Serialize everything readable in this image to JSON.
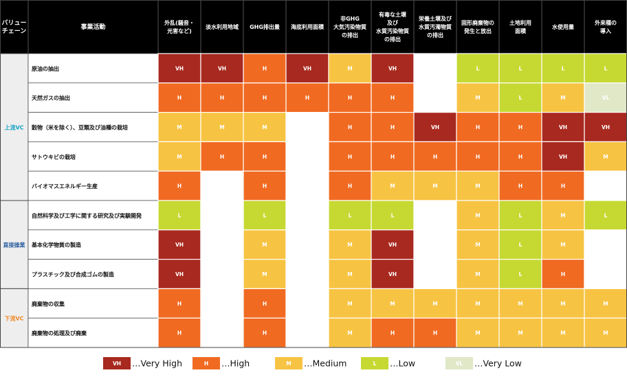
{
  "chart_data": {
    "type": "heatmap",
    "header": {
      "stage": "バリュー\nチェーン",
      "activity": "事業活動",
      "columns": [
        "外乱(騒音・\n光害など)",
        "淡水利用地域",
        "GHG排出量",
        "海底利用面積",
        "非GHG\n大気汚染物質\nの排出",
        "有毒な土壌\n及び\n水質汚染物質\nの排出",
        "栄養土壌及び\n水質汚濁物質\nの排出",
        "固形廃棄物の\n発生と放出",
        "土地利用\n面積",
        "水使用量",
        "外来種の\n導入"
      ]
    },
    "groups": [
      {
        "label": "上流VC",
        "color": "#14a4c4",
        "rows": 5
      },
      {
        "label": "直接操業",
        "color": "#2a5fa0",
        "rows": 3
      },
      {
        "label": "下流VC",
        "color": "#f08a24",
        "rows": 2
      }
    ],
    "rows": [
      {
        "label": "原油の抽出",
        "values": [
          "VH",
          "VH",
          "H",
          "VH",
          "M",
          "VH",
          "",
          "L",
          "L",
          "L",
          "L"
        ]
      },
      {
        "label": "天然ガスの抽出",
        "values": [
          "H",
          "H",
          "H",
          "H",
          "H",
          "H",
          "",
          "M",
          "L",
          "M",
          "VL"
        ]
      },
      {
        "label": "穀物（米を除く）、豆類及び油種の栽培",
        "values": [
          "M",
          "M",
          "M",
          "",
          "H",
          "H",
          "VH",
          "H",
          "H",
          "VH",
          "VH"
        ]
      },
      {
        "label": "サトウキビの栽培",
        "values": [
          "M",
          "H",
          "H",
          "",
          "H",
          "H",
          "H",
          "H",
          "H",
          "VH",
          "M"
        ]
      },
      {
        "label": "バイオマスエネルギー生産",
        "values": [
          "H",
          "",
          "H",
          "",
          "H",
          "M",
          "M",
          "M",
          "H",
          "H",
          ""
        ]
      },
      {
        "label": "自然科学及び工学に関する研究及び実験開発",
        "values": [
          "L",
          "",
          "L",
          "",
          "L",
          "L",
          "",
          "M",
          "L",
          "M",
          "L"
        ]
      },
      {
        "label": "基本化学物質の製造",
        "values": [
          "VH",
          "",
          "M",
          "",
          "M",
          "VH",
          "",
          "M",
          "L",
          "M",
          ""
        ]
      },
      {
        "label": "プラスチック及び合成ゴムの製造",
        "values": [
          "VH",
          "",
          "M",
          "",
          "M",
          "VH",
          "",
          "M",
          "L",
          "H",
          ""
        ]
      },
      {
        "label": "廃棄物の収集",
        "values": [
          "H",
          "",
          "H",
          "",
          "M",
          "M",
          "M",
          "M",
          "M",
          "M",
          "M"
        ]
      },
      {
        "label": "廃棄物の処理及び廃棄",
        "values": [
          "H",
          "",
          "H",
          "",
          "M",
          "H",
          "H",
          "M",
          "M",
          "M",
          "M"
        ]
      }
    ],
    "levels": {
      "VH": "#a8291f",
      "H": "#f06a22",
      "M": "#f7c342",
      "L": "#c6d932",
      "VL": "#e0e8c8"
    },
    "legend": [
      {
        "code": "VH",
        "text": "…Very High"
      },
      {
        "code": "H",
        "text": "…High"
      },
      {
        "code": "M",
        "text": "…Medium"
      },
      {
        "code": "L",
        "text": "…Low"
      },
      {
        "code": "VL",
        "text": "…Very Low"
      }
    ],
    "colors": {
      "header_bg": "#000000",
      "header_text": "#ffffff",
      "stage_bg": "#eeeeee",
      "label_bg": "#ffffff",
      "empty_cell": "#ffffff",
      "grid": "#ffffff",
      "frame": "#444444"
    }
  }
}
